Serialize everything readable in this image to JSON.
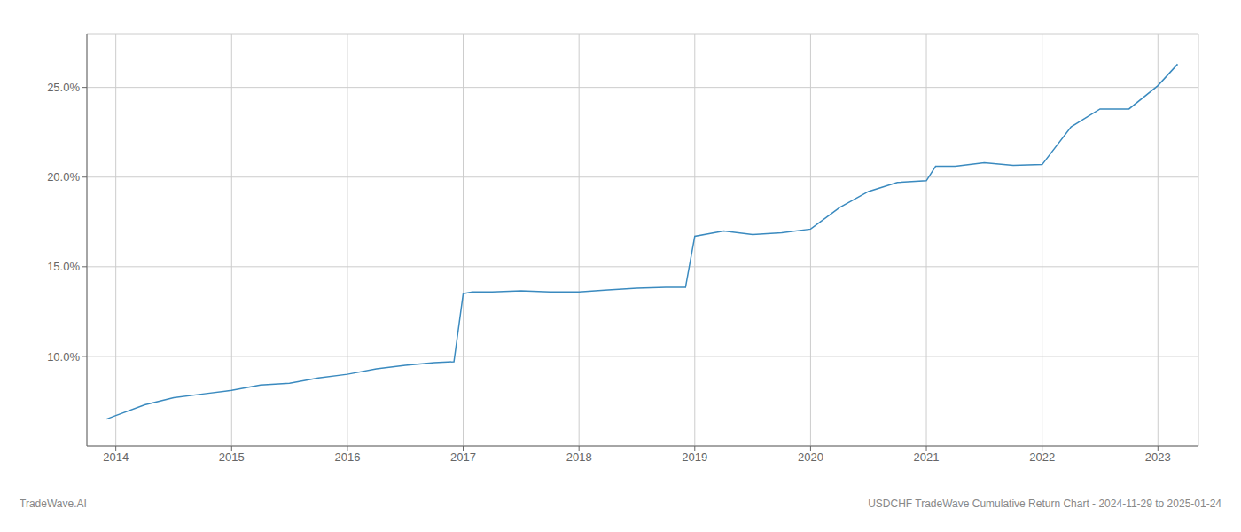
{
  "chart_data": {
    "type": "line",
    "annotations": [
      "TradeWave.AI",
      "USDCHF TradeWave Cumulative Return Chart - 2024-11-29 to 2025-01-24"
    ],
    "color": "#3a8abf",
    "grid": true,
    "x": [
      2013.92,
      2014.0,
      2014.25,
      2014.5,
      2014.75,
      2015.0,
      2015.25,
      2015.5,
      2015.75,
      2016.0,
      2016.25,
      2016.5,
      2016.75,
      2016.92,
      2017.0,
      2017.08,
      2017.25,
      2017.5,
      2017.75,
      2018.0,
      2018.25,
      2018.5,
      2018.75,
      2018.92,
      2019.0,
      2019.25,
      2019.5,
      2019.75,
      2020.0,
      2020.25,
      2020.5,
      2020.75,
      2021.0,
      2021.08,
      2021.25,
      2021.5,
      2021.75,
      2022.0,
      2022.25,
      2022.5,
      2022.75,
      2023.0,
      2023.17
    ],
    "values": [
      6.5,
      6.7,
      7.3,
      7.7,
      7.9,
      8.1,
      8.4,
      8.5,
      8.8,
      9.0,
      9.3,
      9.5,
      9.65,
      9.7,
      13.5,
      13.6,
      13.6,
      13.65,
      13.6,
      13.6,
      13.7,
      13.8,
      13.85,
      13.85,
      16.7,
      17.0,
      16.8,
      16.9,
      17.1,
      18.3,
      19.2,
      19.7,
      19.8,
      20.6,
      20.6,
      20.8,
      20.65,
      20.7,
      22.8,
      23.8,
      23.8,
      25.1,
      26.3
    ],
    "xlim": [
      2013.75,
      2023.35
    ],
    "xticks": [
      2014,
      2015,
      2016,
      2017,
      2018,
      2019,
      2020,
      2021,
      2022,
      2023
    ],
    "ylim": [
      5.0,
      28.0
    ],
    "yticks": [
      {
        "value": 10.0,
        "label": "10.0%"
      },
      {
        "value": 15.0,
        "label": "15.0%"
      },
      {
        "value": 20.0,
        "label": "20.0%"
      },
      {
        "value": 25.0,
        "label": "25.0%"
      }
    ]
  }
}
